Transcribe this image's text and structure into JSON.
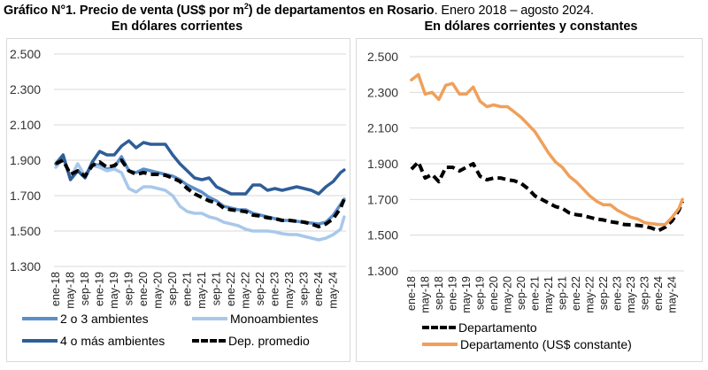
{
  "figure": {
    "title_bold": "Gráfico N°1. Precio de venta (US$ por m",
    "title_sup": "2",
    "title_bold_end": ") de departamentos en Rosario",
    "title_rest": ". Enero 2018 – agosto 2024."
  },
  "chart_data": [
    {
      "type": "line",
      "title": "En dólares corrientes",
      "xlabel": "",
      "ylabel": "",
      "ylim": [
        1300,
        2500
      ],
      "yticks": [
        1300,
        1500,
        1700,
        1900,
        2100,
        2300,
        2500
      ],
      "ytick_labels": [
        "1.300",
        "1.500",
        "1.700",
        "1.900",
        "2.100",
        "2.300",
        "2.500"
      ],
      "grid": true,
      "legend_position": "bottom",
      "x_tick_labels": [
        "ene-18",
        "may-18",
        "sep-18",
        "ene-19",
        "may-19",
        "sep-19",
        "ene-20",
        "may-20",
        "sep-20",
        "ene-21",
        "may-21",
        "sep-21",
        "ene-22",
        "may-22",
        "sep-22",
        "ene-23",
        "may-23",
        "sep-23",
        "ene-24",
        "may-24"
      ],
      "x_months": [
        0,
        2,
        4,
        6,
        8,
        10,
        12,
        14,
        16,
        18,
        20,
        22,
        24,
        26,
        28,
        30,
        32,
        34,
        36,
        38,
        40,
        42,
        44,
        46,
        48,
        50,
        52,
        54,
        56,
        58,
        60,
        62,
        64,
        66,
        68,
        70,
        72,
        74,
        76,
        78,
        79
      ],
      "series": [
        {
          "name": "2 o 3 ambientes",
          "color": "#5b8fcb",
          "dash": false,
          "values": [
            1880,
            1920,
            1800,
            1840,
            1810,
            1880,
            1870,
            1850,
            1860,
            1920,
            1840,
            1830,
            1850,
            1840,
            1830,
            1820,
            1810,
            1790,
            1760,
            1740,
            1720,
            1690,
            1670,
            1640,
            1630,
            1620,
            1620,
            1600,
            1590,
            1580,
            1570,
            1560,
            1560,
            1555,
            1550,
            1545,
            1540,
            1550,
            1590,
            1650,
            1680
          ]
        },
        {
          "name": "Monoambientes",
          "color": "#a9c8ea",
          "dash": false,
          "values": [
            1860,
            1910,
            1800,
            1880,
            1810,
            1870,
            1860,
            1840,
            1850,
            1830,
            1740,
            1720,
            1750,
            1750,
            1740,
            1730,
            1700,
            1640,
            1610,
            1600,
            1600,
            1580,
            1570,
            1550,
            1540,
            1530,
            1510,
            1500,
            1500,
            1500,
            1495,
            1485,
            1480,
            1480,
            1470,
            1460,
            1450,
            1460,
            1480,
            1510,
            1580
          ]
        },
        {
          "name": "4 o más ambientes",
          "color": "#2e5e97",
          "dash": false,
          "values": [
            1880,
            1930,
            1790,
            1840,
            1800,
            1890,
            1950,
            1930,
            1930,
            1980,
            2010,
            1970,
            2000,
            1990,
            1990,
            1990,
            1930,
            1880,
            1840,
            1800,
            1790,
            1800,
            1750,
            1730,
            1710,
            1710,
            1710,
            1760,
            1760,
            1730,
            1740,
            1730,
            1740,
            1750,
            1740,
            1730,
            1710,
            1750,
            1780,
            1830,
            1845
          ]
        },
        {
          "name": "Dep. promedio",
          "color": "#000000",
          "dash": true,
          "values": [
            1880,
            1900,
            1820,
            1840,
            1810,
            1870,
            1890,
            1860,
            1870,
            1900,
            1840,
            1820,
            1830,
            1820,
            1820,
            1815,
            1800,
            1780,
            1740,
            1710,
            1690,
            1670,
            1660,
            1630,
            1620,
            1615,
            1610,
            1590,
            1585,
            1575,
            1570,
            1560,
            1560,
            1555,
            1550,
            1540,
            1525,
            1540,
            1570,
            1630,
            1680
          ]
        }
      ]
    },
    {
      "type": "line",
      "title": "En dólares corrientes y constantes",
      "xlabel": "",
      "ylabel": "",
      "ylim": [
        1300,
        2500
      ],
      "yticks": [
        1300,
        1500,
        1700,
        1900,
        2100,
        2300,
        2500
      ],
      "ytick_labels": [
        "1.300",
        "1.500",
        "1.700",
        "1.900",
        "2.100",
        "2.300",
        "2.500"
      ],
      "grid": true,
      "legend_position": "bottom",
      "x_tick_labels": [
        "ene-18",
        "may-18",
        "sep-18",
        "ene-19",
        "may-19",
        "sep-19",
        "ene-20",
        "may-20",
        "sep-20",
        "ene-21",
        "may-21",
        "sep-21",
        "ene-22",
        "may-22",
        "sep-22",
        "ene-23",
        "may-23",
        "sep-23",
        "ene-24",
        "may-24"
      ],
      "x_months": [
        0,
        2,
        4,
        6,
        8,
        10,
        12,
        14,
        16,
        18,
        20,
        22,
        24,
        26,
        28,
        30,
        32,
        34,
        36,
        38,
        40,
        42,
        44,
        46,
        48,
        50,
        52,
        54,
        56,
        58,
        60,
        62,
        64,
        66,
        68,
        70,
        72,
        74,
        76,
        78,
        79
      ],
      "series": [
        {
          "name": "Departamento",
          "color": "#000000",
          "dash": true,
          "values": [
            1870,
            1910,
            1820,
            1840,
            1800,
            1880,
            1880,
            1860,
            1880,
            1900,
            1830,
            1810,
            1820,
            1820,
            1810,
            1805,
            1790,
            1760,
            1720,
            1700,
            1680,
            1660,
            1650,
            1625,
            1615,
            1610,
            1600,
            1590,
            1585,
            1575,
            1570,
            1560,
            1558,
            1555,
            1550,
            1540,
            1525,
            1545,
            1580,
            1640,
            1690
          ]
        },
        {
          "name": "Departamento (US$ constante)",
          "color": "#f0a05a",
          "dash": false,
          "values": [
            2370,
            2400,
            2290,
            2300,
            2260,
            2340,
            2350,
            2290,
            2290,
            2330,
            2250,
            2220,
            2230,
            2220,
            2220,
            2190,
            2160,
            2120,
            2080,
            2020,
            1960,
            1910,
            1880,
            1830,
            1800,
            1760,
            1720,
            1690,
            1670,
            1670,
            1640,
            1620,
            1600,
            1590,
            1570,
            1565,
            1560,
            1560,
            1600,
            1650,
            1700
          ]
        }
      ]
    }
  ]
}
